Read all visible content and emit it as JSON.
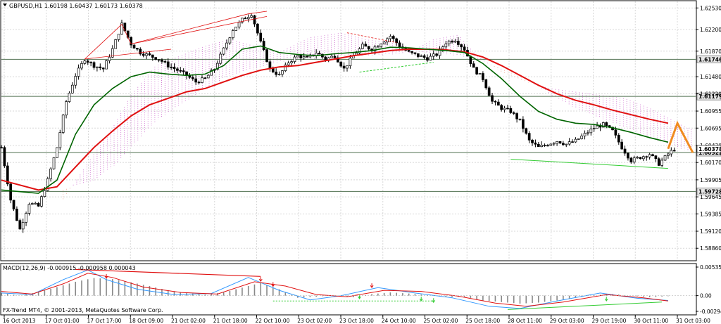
{
  "header": {
    "symbol_line": "GBPUSD,H1  1.60198 1.60437 1.60173 1.60378",
    "dropdown_icon": "triangle-down-icon"
  },
  "macd": {
    "label": "MACD(12,26,9) -0.000915 -0.000958 0.000043",
    "axis_labels": [
      "0.005353",
      "0.00",
      "-0.002943"
    ]
  },
  "copyright": "FX-Trend MT4, © 2001-2013, MetaQuotes Software Corp.",
  "colors": {
    "ma_fast": "#006400",
    "ma_slow": "#e01010",
    "kumo_bull": "#f0a090",
    "kumo_bear": "#cc66cc",
    "forecast": "#f08a20",
    "support_line": "#33cc33",
    "macd_signal": "#e01010",
    "macd_line": "#3399ff",
    "histogram": "#888888"
  },
  "chart_data": [
    {
      "type": "candlestick",
      "symbol": "GBPUSD",
      "timeframe": "H1",
      "ylim": [
        1.5868,
        1.6263
      ],
      "y_ticks": [
        "1.62530",
        "1.62200",
        "1.61870",
        "1.61480",
        "1.61220",
        "1.60955",
        "1.60695",
        "1.60430",
        "1.60170",
        "1.59905",
        "1.59645",
        "1.59385",
        "1.59120",
        "1.58860"
      ],
      "x_labels": [
        "16 Oct 2013",
        "17 Oct 01:00",
        "17 Oct 17:00",
        "18 Oct 09:00",
        "21 Oct 02:00",
        "21 Oct 18:00",
        "22 Oct 10:00",
        "23 Oct 02:00",
        "23 Oct 18:00",
        "24 Oct 10:00",
        "25 Oct 02:00",
        "25 Oct 18:00",
        "28 Oct 11:00",
        "29 Oct 03:00",
        "29 Oct 19:00",
        "30 Oct 11:00",
        "31 Oct 03:00"
      ],
      "horizontal_levels": [
        {
          "value": 1.61746,
          "label": "1.61746"
        },
        {
          "value": 1.61179,
          "label": "1.61179"
        },
        {
          "value": 1.60322,
          "label": "1.60322"
        },
        {
          "value": 1.59728,
          "label": "1.59728"
        }
      ],
      "current_price": {
        "value": 1.60378,
        "label": "1.60378"
      },
      "close_path": [
        [
          0,
          1.604
        ],
        [
          3,
          1.596
        ],
        [
          6,
          1.5915
        ],
        [
          9,
          1.5955
        ],
        [
          12,
          1.595
        ],
        [
          15,
          1.599
        ],
        [
          18,
          1.604
        ],
        [
          21,
          1.611
        ],
        [
          24,
          1.615
        ],
        [
          27,
          1.6175
        ],
        [
          30,
          1.6165
        ],
        [
          33,
          1.616
        ],
        [
          36,
          1.619
        ],
        [
          39,
          1.6228
        ],
        [
          42,
          1.6198
        ],
        [
          45,
          1.6185
        ],
        [
          48,
          1.618
        ],
        [
          51,
          1.6175
        ],
        [
          54,
          1.6165
        ],
        [
          57,
          1.6158
        ],
        [
          60,
          1.615
        ],
        [
          63,
          1.614
        ],
        [
          66,
          1.6145
        ],
        [
          69,
          1.616
        ],
        [
          72,
          1.619
        ],
        [
          75,
          1.622
        ],
        [
          78,
          1.6235
        ],
        [
          81,
          1.6244
        ],
        [
          84,
          1.62
        ],
        [
          87,
          1.616
        ],
        [
          90,
          1.615
        ],
        [
          93,
          1.617
        ],
        [
          96,
          1.618
        ],
        [
          99,
          1.6176
        ],
        [
          102,
          1.6185
        ],
        [
          105,
          1.6175
        ],
        [
          108,
          1.618
        ],
        [
          111,
          1.616
        ],
        [
          114,
          1.618
        ],
        [
          117,
          1.6195
        ],
        [
          120,
          1.619
        ],
        [
          123,
          1.62
        ],
        [
          126,
          1.621
        ],
        [
          129,
          1.6195
        ],
        [
          132,
          1.6185
        ],
        [
          135,
          1.618
        ],
        [
          138,
          1.6176
        ],
        [
          141,
          1.6182
        ],
        [
          144,
          1.62
        ],
        [
          147,
          1.6205
        ],
        [
          150,
          1.619
        ],
        [
          153,
          1.616
        ],
        [
          156,
          1.6145
        ],
        [
          159,
          1.611
        ],
        [
          162,
          1.61
        ],
        [
          165,
          1.6095
        ],
        [
          168,
          1.608
        ],
        [
          171,
          1.605
        ],
        [
          174,
          1.604
        ],
        [
          177,
          1.6045
        ],
        [
          180,
          1.605
        ],
        [
          183,
          1.6045
        ],
        [
          186,
          1.605
        ],
        [
          189,
          1.606
        ],
        [
          192,
          1.607
        ],
        [
          195,
          1.6075
        ],
        [
          198,
          1.6065
        ],
        [
          201,
          1.604
        ],
        [
          204,
          1.602
        ],
        [
          207,
          1.6025
        ],
        [
          210,
          1.603
        ],
        [
          213,
          1.6015
        ],
        [
          216,
          1.603
        ],
        [
          218,
          1.60378
        ]
      ],
      "ma_fast": [
        [
          0,
          1.5975
        ],
        [
          12,
          1.597
        ],
        [
          18,
          1.599
        ],
        [
          24,
          1.606
        ],
        [
          30,
          1.6105
        ],
        [
          36,
          1.613
        ],
        [
          42,
          1.6148
        ],
        [
          48,
          1.6155
        ],
        [
          54,
          1.6152
        ],
        [
          60,
          1.615
        ],
        [
          66,
          1.6152
        ],
        [
          72,
          1.6165
        ],
        [
          78,
          1.619
        ],
        [
          84,
          1.6195
        ],
        [
          90,
          1.6185
        ],
        [
          96,
          1.6182
        ],
        [
          102,
          1.618
        ],
        [
          108,
          1.6183
        ],
        [
          114,
          1.6185
        ],
        [
          120,
          1.6188
        ],
        [
          126,
          1.6193
        ],
        [
          132,
          1.6192
        ],
        [
          138,
          1.619
        ],
        [
          144,
          1.6188
        ],
        [
          150,
          1.6185
        ],
        [
          156,
          1.6168
        ],
        [
          162,
          1.6145
        ],
        [
          168,
          1.6118
        ],
        [
          174,
          1.6095
        ],
        [
          180,
          1.6083
        ],
        [
          186,
          1.6077
        ],
        [
          192,
          1.6075
        ],
        [
          198,
          1.607
        ],
        [
          204,
          1.6063
        ],
        [
          210,
          1.6055
        ],
        [
          216,
          1.6048
        ]
      ],
      "ma_slow": [
        [
          0,
          1.599
        ],
        [
          12,
          1.5975
        ],
        [
          18,
          1.598
        ],
        [
          24,
          1.601
        ],
        [
          30,
          1.604
        ],
        [
          36,
          1.6065
        ],
        [
          42,
          1.6088
        ],
        [
          48,
          1.6105
        ],
        [
          54,
          1.6115
        ],
        [
          60,
          1.6125
        ],
        [
          66,
          1.613
        ],
        [
          72,
          1.614
        ],
        [
          78,
          1.615
        ],
        [
          84,
          1.6158
        ],
        [
          90,
          1.6163
        ],
        [
          96,
          1.6165
        ],
        [
          102,
          1.617
        ],
        [
          108,
          1.6175
        ],
        [
          114,
          1.618
        ],
        [
          120,
          1.6184
        ],
        [
          126,
          1.6188
        ],
        [
          132,
          1.619
        ],
        [
          138,
          1.619
        ],
        [
          144,
          1.6189
        ],
        [
          150,
          1.6186
        ],
        [
          156,
          1.6178
        ],
        [
          162,
          1.6165
        ],
        [
          168,
          1.615
        ],
        [
          174,
          1.6135
        ],
        [
          180,
          1.6122
        ],
        [
          186,
          1.6112
        ],
        [
          192,
          1.6105
        ],
        [
          198,
          1.6097
        ],
        [
          204,
          1.609
        ],
        [
          210,
          1.6083
        ],
        [
          216,
          1.6077
        ]
      ],
      "forecast_path": [
        [
          216,
          1.60378
        ],
        [
          219,
          1.6077
        ],
        [
          224,
          1.6032
        ]
      ],
      "support_trend": [
        [
          165,
          1.6022
        ],
        [
          216,
          1.6008
        ]
      ]
    },
    {
      "type": "macd",
      "params": "12,26,9",
      "ylim": [
        -0.002943,
        0.005353
      ],
      "histogram": [
        [
          0,
          0.0005
        ],
        [
          6,
          0.0
        ],
        [
          12,
          0.0007
        ],
        [
          18,
          0.0016
        ],
        [
          24,
          0.0026
        ],
        [
          30,
          0.0033
        ],
        [
          36,
          0.0031
        ],
        [
          42,
          0.0025
        ],
        [
          48,
          0.0018
        ],
        [
          54,
          0.001
        ],
        [
          60,
          0.0005
        ],
        [
          66,
          0.0002
        ],
        [
          72,
          0.0006
        ],
        [
          78,
          0.0015
        ],
        [
          84,
          0.0024
        ],
        [
          90,
          0.0012
        ],
        [
          96,
          -0.0004
        ],
        [
          102,
          -0.0002
        ],
        [
          108,
          0.0001
        ],
        [
          114,
          -0.0003
        ],
        [
          120,
          0.0003
        ],
        [
          126,
          0.0006
        ],
        [
          132,
          0.0004
        ],
        [
          138,
          0.0001
        ],
        [
          144,
          -0.0003
        ],
        [
          150,
          -0.0002
        ],
        [
          156,
          -0.0009
        ],
        [
          162,
          -0.0012
        ],
        [
          168,
          -0.0015
        ],
        [
          174,
          -0.0013
        ],
        [
          180,
          -0.0009
        ],
        [
          186,
          -0.0004
        ],
        [
          192,
          0.0001
        ],
        [
          198,
          0.0003
        ],
        [
          204,
          0.0
        ],
        [
          210,
          -0.0003
        ],
        [
          216,
          -0.0001
        ]
      ],
      "macd_line": [
        [
          0,
          0.0005
        ],
        [
          10,
          0.0002
        ],
        [
          20,
          0.003
        ],
        [
          28,
          0.0048
        ],
        [
          34,
          0.003
        ],
        [
          44,
          0.0012
        ],
        [
          56,
          0.0002
        ],
        [
          68,
          0.0004
        ],
        [
          80,
          0.0034
        ],
        [
          90,
          0.001
        ],
        [
          100,
          -0.0008
        ],
        [
          110,
          0.0
        ],
        [
          122,
          0.0015
        ],
        [
          134,
          0.0005
        ],
        [
          146,
          -0.0004
        ],
        [
          158,
          -0.002
        ],
        [
          168,
          -0.0024
        ],
        [
          180,
          -0.001
        ],
        [
          194,
          0.0005
        ],
        [
          206,
          -0.0005
        ],
        [
          216,
          -0.0009
        ]
      ],
      "signal_line": [
        [
          0,
          0.0008
        ],
        [
          10,
          0.0003
        ],
        [
          20,
          0.0022
        ],
        [
          28,
          0.0042
        ],
        [
          36,
          0.0034
        ],
        [
          46,
          0.0016
        ],
        [
          58,
          0.0006
        ],
        [
          70,
          0.0003
        ],
        [
          82,
          0.0026
        ],
        [
          92,
          0.0018
        ],
        [
          102,
          0.0002
        ],
        [
          112,
          -0.0002
        ],
        [
          124,
          0.001
        ],
        [
          136,
          0.0008
        ],
        [
          148,
          -0.0001
        ],
        [
          160,
          -0.0014
        ],
        [
          170,
          -0.002
        ],
        [
          182,
          -0.0012
        ],
        [
          196,
          0.0002
        ],
        [
          208,
          -0.0004
        ],
        [
          216,
          -0.001
        ]
      ]
    }
  ]
}
